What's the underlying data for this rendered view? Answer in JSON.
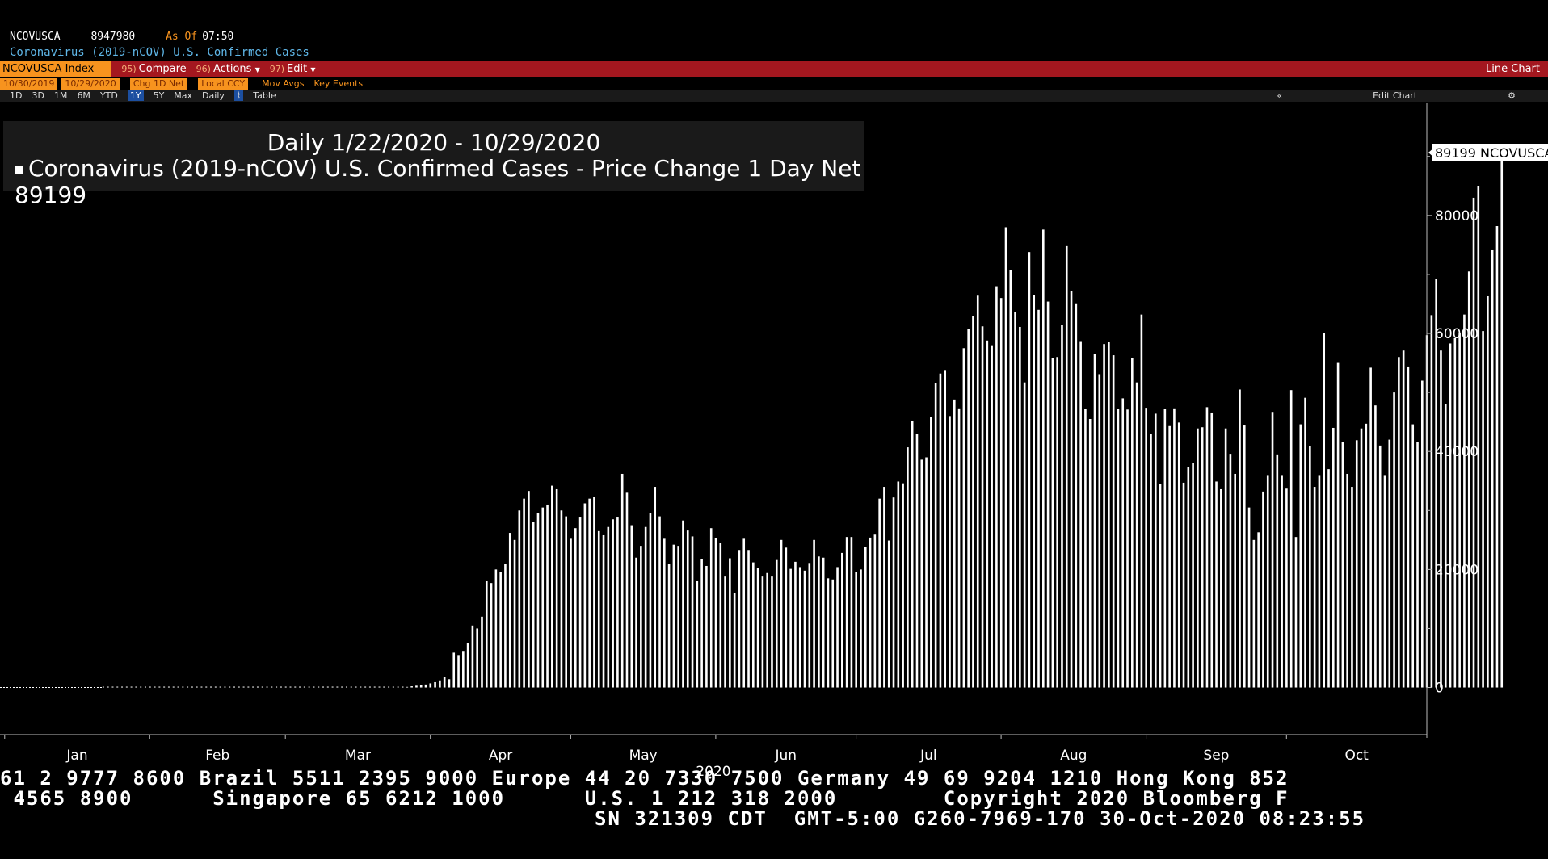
{
  "header": {
    "ticker": "NCOVUSCA",
    "value": "8947980",
    "as_of_label": "As Of",
    "as_of_time": "07:50",
    "subtitle": "Coronavirus (2019-nCOV) U.S. Confirmed Cases"
  },
  "toolbar": {
    "security": "NCOVUSCA Index",
    "compare_num": "95)",
    "compare": "Compare",
    "actions_num": "96)",
    "actions": "Actions",
    "edit_num": "97)",
    "edit": "Edit",
    "chart_type": "Line Chart"
  },
  "settings": {
    "start_date": "10/30/2019",
    "end_date": "10/29/2020",
    "field": "Chg 1D Net",
    "currency": "Local CCY",
    "mov_avgs": "Mov Avgs",
    "key_events": "Key Events"
  },
  "ranges": {
    "items": [
      "1D",
      "3D",
      "1M",
      "6M",
      "YTD",
      "1Y",
      "5Y",
      "Max"
    ],
    "selected": "1Y",
    "period": "Daily",
    "table": "Table",
    "collapse": "«",
    "edit_chart": "Edit Chart",
    "gear": "⚙"
  },
  "legend": {
    "title": "Daily 1/22/2020 - 10/29/2020",
    "entry": "Coronavirus (2019-nCOV) U.S. Confirmed Cases - Price Change 1 Day Net 89199"
  },
  "last_value_label": "89199 NCOVUSCA",
  "footer": {
    "line1": "61 2 9777 8600 Brazil 5511 2395 9000 Europe 44 20 7330 7500 Germany 49 69 9204 1210 Hong Kong 852",
    "line2": " 4565 8900      Singapore 65 6212 1000      U.S. 1 212 318 2000        Copyright 2020 Bloomberg F",
    "line3": "SN 321309 CDT  GMT-5:00 G260-7969-170 30-Oct-2020 08:23:55"
  },
  "chart_data": {
    "type": "bar",
    "title": "Daily 1/22/2020 - 10/29/2020",
    "ylim": [
      -8000,
      99000
    ],
    "yticks": [
      0,
      20000,
      40000,
      60000,
      80000
    ],
    "ytick_labels": [
      "0",
      "20000",
      "40000",
      "60000",
      "80000"
    ],
    "x_start": "2019-12-31",
    "x_end": "2020-10-31",
    "data_start": "2020-01-22",
    "month_labels": [
      "Jan",
      "Feb",
      "Mar",
      "Apr",
      "May",
      "Jun",
      "Jul",
      "Aug",
      "Sep",
      "Oct"
    ],
    "month_starts": [
      "2020-01-01",
      "2020-02-01",
      "2020-03-01",
      "2020-04-01",
      "2020-05-01",
      "2020-06-01",
      "2020-07-01",
      "2020-08-01",
      "2020-09-01",
      "2020-10-01"
    ],
    "year_label": "2020",
    "series": [
      {
        "name": "Coronavirus (2019-nCOV) U.S. Confirmed Cases - Price Change 1 Day Net",
        "values": [
          0,
          0,
          0,
          0,
          0,
          0,
          0,
          0,
          0,
          0,
          0,
          0,
          0,
          0,
          0,
          0,
          0,
          0,
          0,
          0,
          0,
          0,
          0,
          0,
          0,
          0,
          0,
          0,
          0,
          0,
          0,
          0,
          0,
          0,
          0,
          0,
          0,
          0,
          0,
          0,
          0,
          0,
          0,
          0,
          0,
          0,
          0,
          0,
          0,
          0,
          0,
          0,
          0,
          0,
          0,
          0,
          0,
          0,
          0,
          0,
          0,
          0,
          0,
          0,
          0,
          100,
          200,
          300,
          400,
          500,
          700,
          900,
          1200,
          1800,
          1400,
          5900,
          5500,
          6200,
          7600,
          10500,
          10000,
          12000,
          18000,
          17700,
          20000,
          19600,
          21000,
          26200,
          25000,
          30000,
          32000,
          33300,
          28000,
          29500,
          30500,
          31000,
          34200,
          33600,
          30000,
          29000,
          25200,
          27000,
          28800,
          31200,
          32000,
          32300,
          26500,
          25800,
          27200,
          28500,
          28800,
          36200,
          33000,
          27500,
          22000,
          24000,
          27200,
          29600,
          34000,
          29000,
          25200,
          21000,
          24200,
          24000,
          28300,
          26600,
          25600,
          18000,
          21800,
          20600,
          27000,
          25300,
          24500,
          18800,
          21900,
          16000,
          23300,
          25200,
          23300,
          21200,
          20300,
          18800,
          19400,
          18800,
          21600,
          25000,
          23700,
          20100,
          21300,
          20400,
          19800,
          21100,
          25000,
          22200,
          22000,
          18500,
          18300,
          20400,
          22800,
          25500,
          25500,
          19600,
          20000,
          23800,
          25400,
          25900,
          32000,
          34000,
          24900,
          32200,
          34900,
          34600,
          40700,
          45200,
          42900,
          38600,
          39000,
          45900,
          51600,
          53200,
          53800,
          46000,
          48800,
          47300,
          57500,
          60800,
          62900,
          66400,
          61200,
          58800,
          58000,
          68000,
          66000,
          78000,
          70700,
          63700,
          61100,
          51700,
          73800,
          66500,
          64000,
          77600,
          65400,
          55800,
          56000,
          61400,
          74800,
          67200,
          65100,
          58700,
          47200,
          45500,
          56500,
          53100,
          58200,
          58600,
          56300,
          47200,
          49000,
          47100,
          55800,
          51700,
          63200,
          47400,
          42900,
          46400,
          34500,
          47200,
          44300,
          47300,
          44900,
          34700,
          37400,
          38000,
          43900,
          44100,
          47500,
          46600,
          34900,
          33600,
          43900,
          39600,
          36200,
          50500,
          44400,
          30500,
          25000,
          26300,
          33200,
          36000,
          46700,
          39500,
          36000,
          33700,
          50400,
          25500,
          44600,
          49100,
          40900,
          34000,
          36000,
          60100,
          37000,
          44000,
          55000,
          41600,
          36200,
          34000,
          41900,
          43900,
          44700,
          54200,
          47800,
          41000,
          36000,
          42000,
          50000,
          56000,
          57100,
          54400,
          44600,
          41600,
          52000,
          59700,
          63100,
          69200,
          57100,
          48100,
          58300,
          59200,
          60000,
          63200,
          70500,
          83000,
          85000,
          60400,
          66300,
          74100,
          78200,
          89199
        ]
      }
    ]
  }
}
